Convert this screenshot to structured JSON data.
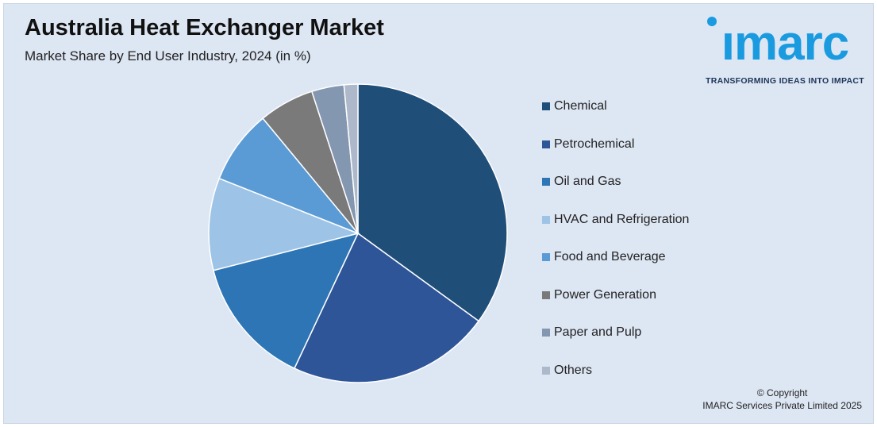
{
  "header": {
    "title": "Australia Heat Exchanger Market",
    "subtitle": "Market Share by End User Industry, 2024 (in %)"
  },
  "logo": {
    "word": "ımarc",
    "tagline": "TRANSFORMING IDEAS INTO IMPACT",
    "color": "#1a9be0"
  },
  "footer": {
    "copyright": "© Copyright",
    "company": "IMARC Services Private Limited 2025"
  },
  "chart_data": {
    "type": "pie",
    "title": "",
    "legend_position": "right",
    "slices": [
      {
        "label": "Chemical",
        "value": 35,
        "color": "#1f4e79"
      },
      {
        "label": "Petrochemical",
        "value": 22,
        "color": "#2e5597"
      },
      {
        "label": "Oil and Gas",
        "value": 14,
        "color": "#2e75b6"
      },
      {
        "label": "HVAC and Refrigeration",
        "value": 10,
        "color": "#9dc3e6"
      },
      {
        "label": "Food and Beverage",
        "value": 8,
        "color": "#5b9bd5"
      },
      {
        "label": "Power Generation",
        "value": 6,
        "color": "#7a7a7a"
      },
      {
        "label": "Paper and Pulp",
        "value": 3.5,
        "color": "#8497b0"
      },
      {
        "label": "Others",
        "value": 1.5,
        "color": "#adb9ca"
      }
    ]
  }
}
